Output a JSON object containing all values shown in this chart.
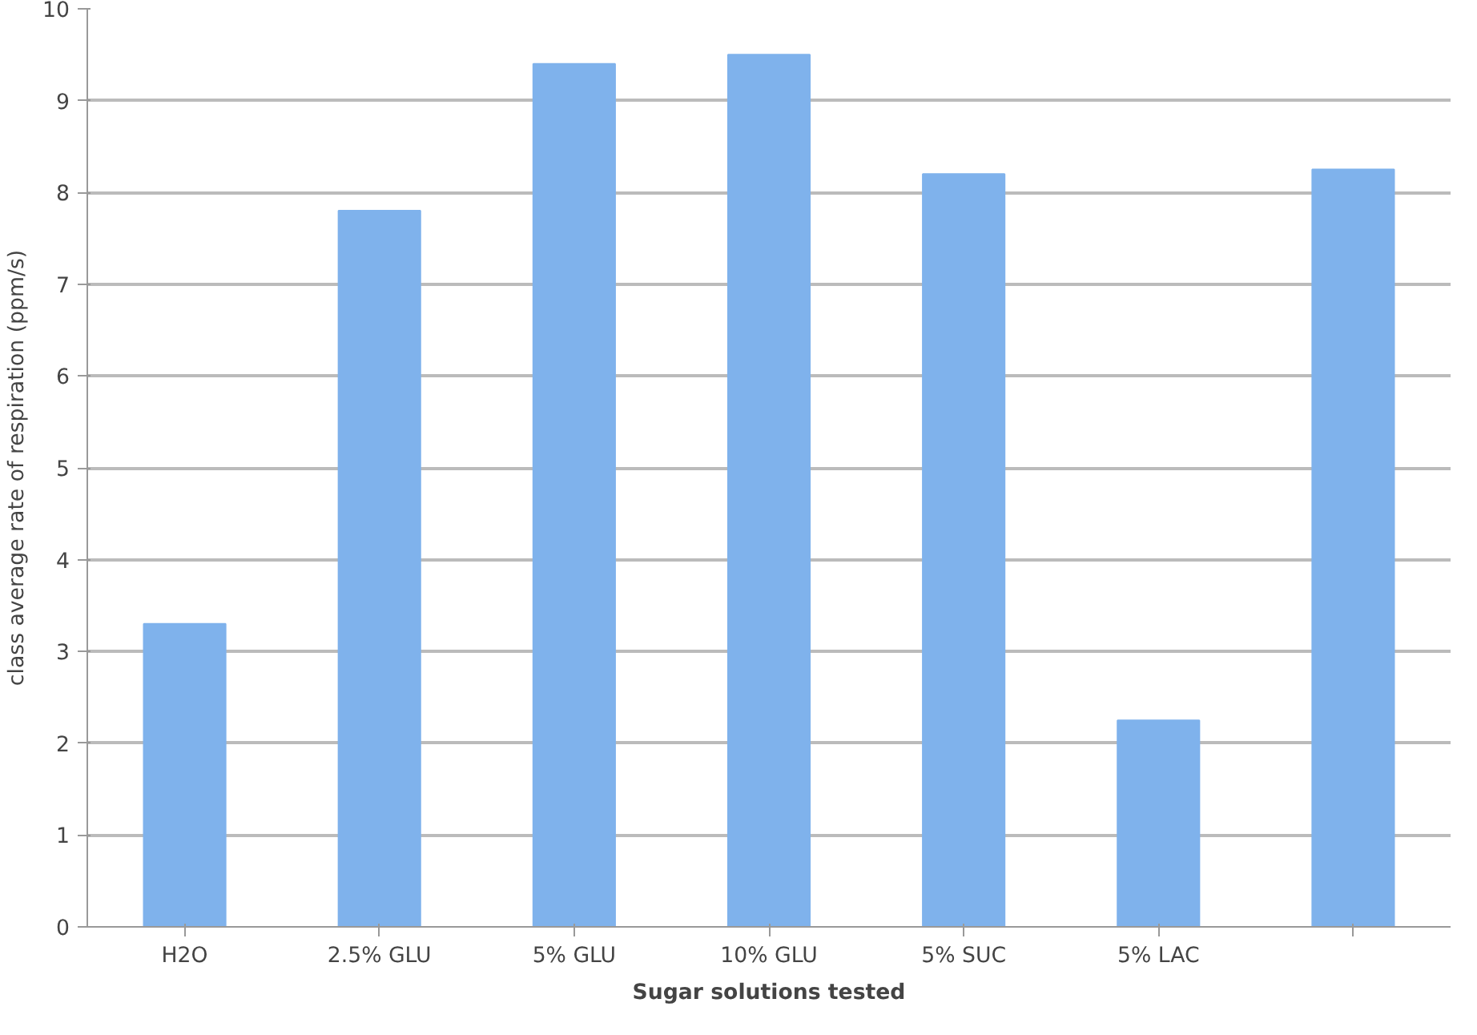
{
  "chart_data": {
    "type": "bar",
    "xlabel": "Sugar solutions tested",
    "ylabel": "class average rate of respiration (ppm/s)",
    "categories": [
      "H2O",
      "2.5% GLU",
      "5% GLU",
      "10% GLU",
      "5% SUC",
      "5% LAC",
      null
    ],
    "values": [
      3.3,
      7.8,
      9.4,
      9.5,
      8.2,
      2.25,
      8.25
    ],
    "color": "#7fb2ec",
    "ylim": [
      0,
      10
    ],
    "yticks": [
      0,
      1,
      2,
      3,
      4,
      5,
      6,
      7,
      8,
      9,
      10
    ],
    "grid": "y"
  }
}
